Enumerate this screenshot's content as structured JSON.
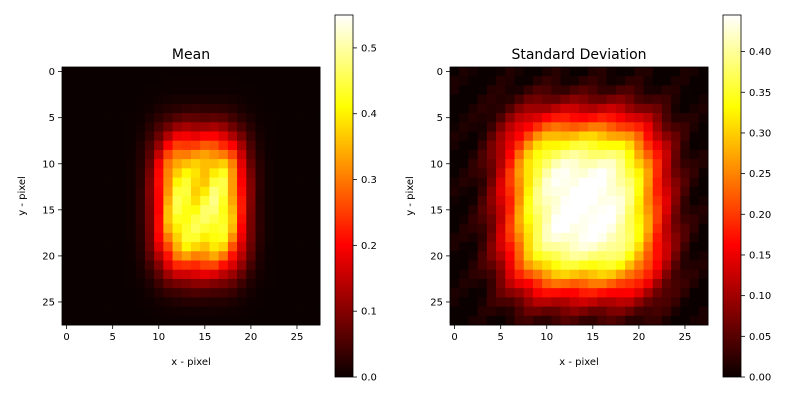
{
  "chart_data": [
    {
      "type": "heatmap",
      "title": "Mean",
      "xlabel": "x - pixel",
      "ylabel": "y - pixel",
      "grid": false,
      "xlim": [
        -0.5,
        27.5
      ],
      "ylim": [
        27.5,
        -0.5
      ],
      "xticks": [
        "0",
        "5",
        "10",
        "15",
        "20",
        "25"
      ],
      "yticks": [
        "0",
        "5",
        "10",
        "15",
        "20",
        "25"
      ],
      "colormap": "hot",
      "colorbar": {
        "range": [
          0.0,
          0.55
        ],
        "ticks": [
          "0.0",
          "0.1",
          "0.2",
          "0.3",
          "0.4",
          "0.5"
        ]
      },
      "size": [
        28,
        28
      ],
      "values": []
    },
    {
      "type": "heatmap",
      "title": "Standard Deviation",
      "xlabel": "x - pixel",
      "ylabel": "y - pixel",
      "grid": false,
      "xlim": [
        -0.5,
        27.5
      ],
      "ylim": [
        27.5,
        -0.5
      ],
      "xticks": [
        "0",
        "5",
        "10",
        "15",
        "20",
        "25"
      ],
      "yticks": [
        "0",
        "5",
        "10",
        "15",
        "20",
        "25"
      ],
      "colormap": "hot",
      "colorbar": {
        "range": [
          0.0,
          0.445
        ],
        "ticks": [
          "0.00",
          "0.05",
          "0.10",
          "0.15",
          "0.20",
          "0.25",
          "0.30",
          "0.35",
          "0.40"
        ]
      },
      "size": [
        28,
        28
      ],
      "values": []
    }
  ]
}
